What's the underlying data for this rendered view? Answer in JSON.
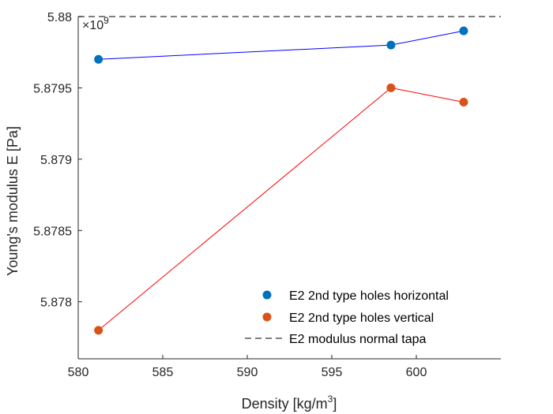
{
  "chart_data": {
    "type": "line",
    "xlabel_main": "Density [kg/m",
    "xlabel_sup": "3",
    "xlabel_end": "]",
    "ylabel": "Young's modulus E [Pa]",
    "y_exponent_prefix": "×10",
    "y_exponent_power": "9",
    "xlim": [
      580,
      605
    ],
    "ylim": [
      5.8776,
      5.88
    ],
    "xticks": [
      580,
      585,
      590,
      595,
      600
    ],
    "xtick_labels": [
      "580",
      "585",
      "590",
      "595",
      "600"
    ],
    "yticks": [
      5.878,
      5.8785,
      5.879,
      5.8795,
      5.88
    ],
    "ytick_labels": [
      "5.878",
      "5.8785",
      "5.879",
      "5.8795",
      "5.88"
    ],
    "grid": false,
    "legend_position": "bottom-right",
    "series": [
      {
        "name": "E2 2nd type holes horizontal",
        "x": [
          581.2,
          598.5,
          602.8
        ],
        "y": [
          5.8797,
          5.8798,
          5.8799
        ],
        "line_color": "#0000ff",
        "marker_color": "#0072bd"
      },
      {
        "name": "E2 2nd type holes vertical",
        "x": [
          581.2,
          598.5,
          602.8
        ],
        "y": [
          5.8778,
          5.8795,
          5.8794
        ],
        "line_color": "#ff0000",
        "marker_color": "#d95319"
      }
    ],
    "reference_line": {
      "name": "E2 modulus normal tapa",
      "y": 5.88,
      "color": "#555555",
      "style": "dashed"
    }
  }
}
